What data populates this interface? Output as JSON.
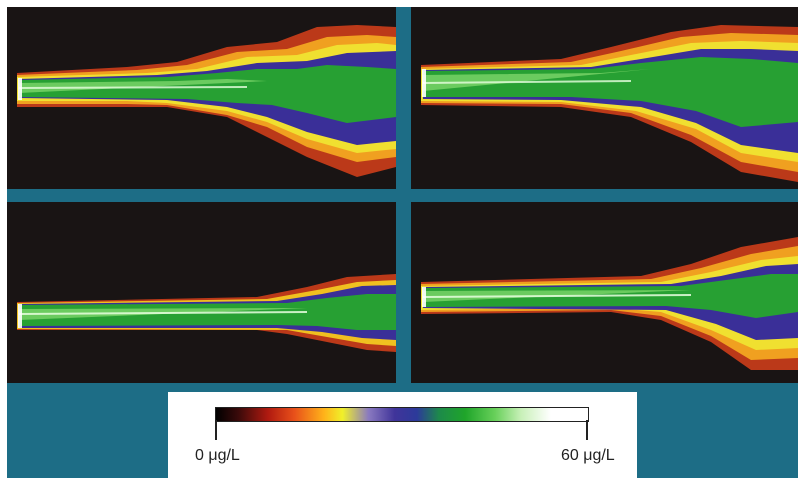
{
  "panels": [
    {
      "id": "top-left"
    },
    {
      "id": "top-right"
    },
    {
      "id": "bottom-left"
    },
    {
      "id": "bottom-right"
    }
  ],
  "colorbar": {
    "min_label": "0 μg/L",
    "max_label": "60 μg/L",
    "colors": [
      "#000000",
      "#b01a10",
      "#ffb21a",
      "#f0f02a",
      "#40349a",
      "#1fa52a",
      "#ffffff"
    ]
  },
  "colors": {
    "frame_background": "#1d6d86",
    "panel_background": "#191414",
    "jet_core": "#2fae2f",
    "jet_edge": "#f0c020"
  }
}
